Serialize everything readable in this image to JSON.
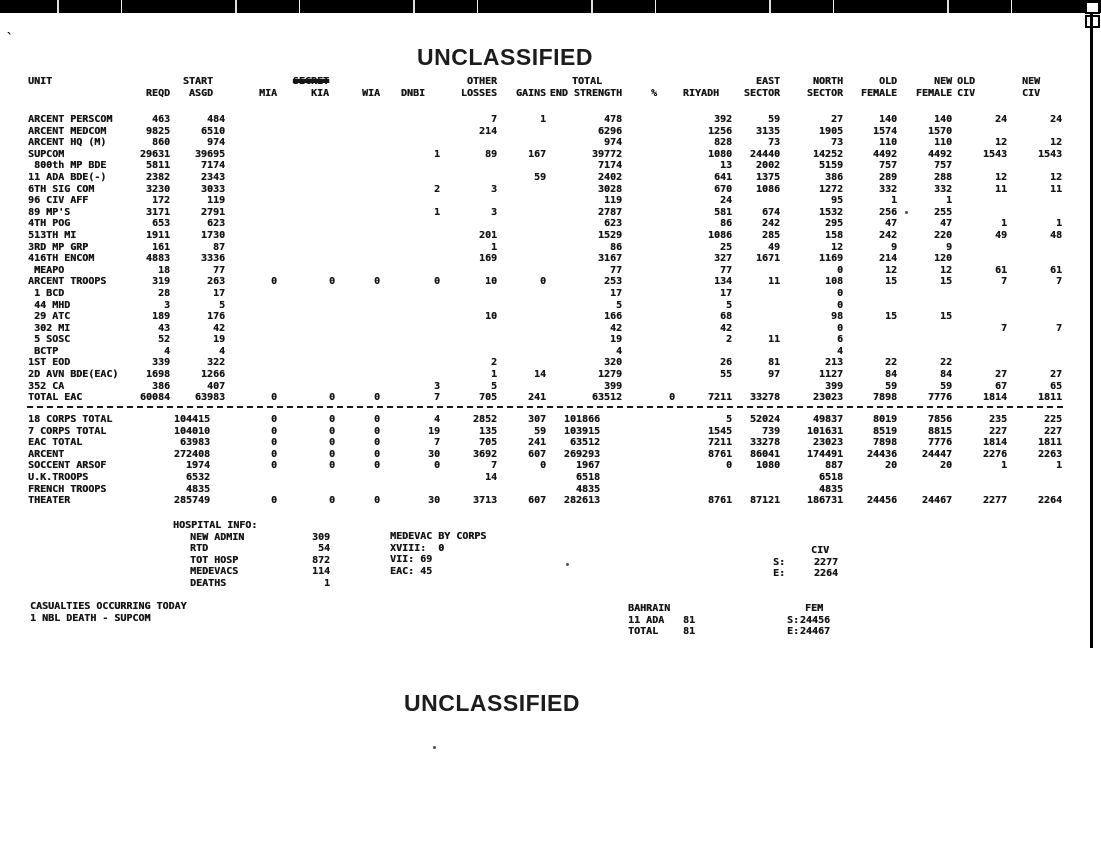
{
  "page": {
    "classification_top": "UNCLASSIFIED",
    "classification_bottom": "UNCLASSIFIED"
  },
  "colors": {
    "ink": "#161616",
    "bar": "#000000",
    "paper": "#ffffff"
  },
  "table": {
    "header_top": [
      "UNIT",
      "",
      "START",
      "",
      "SECRET",
      "",
      "",
      "OTHER",
      "",
      "TOTAL",
      "",
      "",
      "EAST",
      "NORTH",
      "OLD",
      "NEW",
      "OLD",
      "NEW"
    ],
    "header_bottom": [
      "",
      "REQD",
      "ASGD",
      "MIA",
      "KIA",
      "WIA",
      "DNBI",
      "LOSSES",
      "GAINS",
      "END STRENGTH",
      "%",
      "RIYADH",
      "SECTOR",
      "SECTOR",
      "FEMALE",
      "FEMALE",
      "CIV",
      "CIV"
    ],
    "rows": [
      [
        "ARCENT PERSCOM",
        "463",
        "484",
        "",
        "",
        "",
        "",
        "7",
        "1",
        "478",
        "",
        "392",
        "59",
        "27",
        "140",
        "140",
        "24",
        "24"
      ],
      [
        "ARCENT MEDCOM",
        "9825",
        "6510",
        "",
        "",
        "",
        "",
        "214",
        "",
        "6296",
        "",
        "1256",
        "3135",
        "1905",
        "1574",
        "1570",
        "",
        ""
      ],
      [
        "ARCENT HQ (M)",
        "860",
        "974",
        "",
        "",
        "",
        "",
        "",
        "",
        "974",
        "",
        "828",
        "73",
        "73",
        "110",
        "110",
        "12",
        "12"
      ],
      [
        "SUPCOM",
        "29631",
        "39695",
        "",
        "",
        "",
        "1",
        "89",
        "167",
        "39772",
        "",
        "1080",
        "24440",
        "14252",
        "4492",
        "4492",
        "1543",
        "1543"
      ],
      [
        " 800th MP BDE",
        "5811",
        "7174",
        "",
        "",
        "",
        "",
        "",
        "",
        "7174",
        "",
        "13",
        "2002",
        "5159",
        "757",
        "757",
        "",
        ""
      ],
      [
        "11 ADA BDE(-)",
        "2382",
        "2343",
        "",
        "",
        "",
        "",
        "",
        "59",
        "2402",
        "",
        "641",
        "1375",
        "386",
        "289",
        "288",
        "12",
        "12"
      ],
      [
        "6TH SIG COM",
        "3230",
        "3033",
        "",
        "",
        "",
        "2",
        "3",
        "",
        "3028",
        "",
        "670",
        "1086",
        "1272",
        "332",
        "332",
        "11",
        "11"
      ],
      [
        "96 CIV AFF",
        "172",
        "119",
        "",
        "",
        "",
        "",
        "",
        "",
        "119",
        "",
        "24",
        "",
        "95",
        "1",
        "1",
        "",
        ""
      ],
      [
        "89 MP'S",
        "3171",
        "2791",
        "",
        "",
        "",
        "1",
        "3",
        "",
        "2787",
        "",
        "581",
        "674",
        "1532",
        "256",
        "255",
        "",
        ""
      ],
      [
        "4TH POG",
        "653",
        "623",
        "",
        "",
        "",
        "",
        "",
        "",
        "623",
        "",
        "86",
        "242",
        "295",
        "47",
        "47",
        "1",
        "1"
      ],
      [
        "513TH MI",
        "1911",
        "1730",
        "",
        "",
        "",
        "",
        "201",
        "",
        "1529",
        "",
        "1086",
        "285",
        "158",
        "242",
        "220",
        "49",
        "48"
      ],
      [
        "3RD MP GRP",
        "161",
        "87",
        "",
        "",
        "",
        "",
        "1",
        "",
        "86",
        "",
        "25",
        "49",
        "12",
        "9",
        "9",
        "",
        ""
      ],
      [
        "416TH ENCOM",
        "4883",
        "3336",
        "",
        "",
        "",
        "",
        "169",
        "",
        "3167",
        "",
        "327",
        "1671",
        "1169",
        "214",
        "120",
        "",
        ""
      ],
      [
        " MEAPO",
        "18",
        "77",
        "",
        "",
        "",
        "",
        "",
        "",
        "77",
        "",
        "77",
        "",
        "0",
        "12",
        "12",
        "61",
        "61"
      ],
      [
        "ARCENT TROOPS",
        "319",
        "263",
        "0",
        "0",
        "0",
        "0",
        "10",
        "0",
        "253",
        "",
        "134",
        "11",
        "108",
        "15",
        "15",
        "7",
        "7"
      ],
      [
        " 1 BCD",
        "28",
        "17",
        "",
        "",
        "",
        "",
        "",
        "",
        "17",
        "",
        "17",
        "",
        "0",
        "",
        "",
        "",
        ""
      ],
      [
        " 44 MHD",
        "3",
        "5",
        "",
        "",
        "",
        "",
        "",
        "",
        "5",
        "",
        "5",
        "",
        "0",
        "",
        "",
        "",
        ""
      ],
      [
        " 29 ATC",
        "189",
        "176",
        "",
        "",
        "",
        "",
        "10",
        "",
        "166",
        "",
        "68",
        "",
        "98",
        "15",
        "15",
        "",
        ""
      ],
      [
        " 302 MI",
        "43",
        "42",
        "",
        "",
        "",
        "",
        "",
        "",
        "42",
        "",
        "42",
        "",
        "0",
        "",
        "",
        "7",
        "7"
      ],
      [
        " 5 SOSC",
        "52",
        "19",
        "",
        "",
        "",
        "",
        "",
        "",
        "19",
        "",
        "2",
        "11",
        "6",
        "",
        "",
        "",
        ""
      ],
      [
        " BCTP",
        "4",
        "4",
        "",
        "",
        "",
        "",
        "",
        "",
        "4",
        "",
        "",
        "",
        "4",
        "",
        "",
        "",
        ""
      ],
      [
        "1ST EOD",
        "339",
        "322",
        "",
        "",
        "",
        "",
        "2",
        "",
        "320",
        "",
        "26",
        "81",
        "213",
        "22",
        "22",
        "",
        ""
      ],
      [
        "2D AVN BDE(EAC)",
        "1698",
        "1266",
        "",
        "",
        "",
        "",
        "1",
        "14",
        "1279",
        "",
        "55",
        "97",
        "1127",
        "84",
        "84",
        "27",
        "27"
      ],
      [
        "352 CA",
        "386",
        "407",
        "",
        "",
        "",
        "3",
        "5",
        "",
        "399",
        "",
        "",
        "",
        "399",
        "59",
        "59",
        "67",
        "65"
      ],
      [
        "TOTAL EAC",
        "60084",
        "63983",
        "0",
        "0",
        "0",
        "7",
        "705",
        "241",
        "63512",
        "0",
        "7211",
        "33278",
        "23023",
        "7898",
        "7776",
        "1814",
        "1811"
      ]
    ],
    "summary_rows": [
      [
        "18 CORPS TOTAL",
        "",
        "104415",
        "0",
        "0",
        "0",
        "4",
        "2852",
        "307",
        "101866",
        "",
        "5",
        "52024",
        "49837",
        "8019",
        "7856",
        "235",
        "225"
      ],
      [
        "7 CORPS TOTAL",
        "",
        "104010",
        "0",
        "0",
        "0",
        "19",
        "135",
        "59",
        "103915",
        "",
        "1545",
        "739",
        "101631",
        "8519",
        "8815",
        "227",
        "227"
      ],
      [
        "EAC TOTAL",
        "",
        "63983",
        "0",
        "0",
        "0",
        "7",
        "705",
        "241",
        "63512",
        "",
        "7211",
        "33278",
        "23023",
        "7898",
        "7776",
        "1814",
        "1811"
      ],
      [
        "ARCENT",
        "",
        "272408",
        "0",
        "0",
        "0",
        "30",
        "3692",
        "607",
        "269293",
        "",
        "8761",
        "86041",
        "174491",
        "24436",
        "24447",
        "2276",
        "2263"
      ],
      [
        "SOCCENT ARSOF",
        "",
        "1974",
        "0",
        "0",
        "0",
        "0",
        "7",
        "0",
        "1967",
        "",
        "0",
        "1080",
        "887",
        "20",
        "20",
        "1",
        "1"
      ],
      [
        "U.K.TROOPS",
        "",
        "6532",
        "",
        "",
        "",
        "",
        "14",
        "",
        "6518",
        "",
        "",
        "",
        "6518",
        "",
        "",
        "",
        ""
      ],
      [
        "FRENCH TROOPS",
        "",
        "4835",
        "",
        "",
        "",
        "",
        "",
        "",
        "4835",
        "",
        "",
        "",
        "4835",
        "",
        "",
        "",
        ""
      ],
      [
        "THEATER",
        "",
        "285749",
        "0",
        "0",
        "0",
        "30",
        "3713",
        "607",
        "282613",
        "",
        "8761",
        "87121",
        "186731",
        "24456",
        "24467",
        "2277",
        "2264"
      ]
    ]
  },
  "hospital": {
    "title": "HOSPITAL INFO:",
    "items": [
      {
        "label": "NEW ADMIN",
        "value": "309"
      },
      {
        "label": "RTD",
        "value": "54"
      },
      {
        "label": "TOT HOSP",
        "value": "872"
      },
      {
        "label": "MEDEVACS",
        "value": "114"
      },
      {
        "label": "DEATHS",
        "value": "1"
      }
    ],
    "medevac_title": "MEDEVAC BY CORPS",
    "medevac_lines": [
      "XVIII:  0",
      "VII: 69",
      "EAC: 45"
    ],
    "civ": {
      "title": "CIV",
      "rows": [
        {
          "label": "S:",
          "value": "2277"
        },
        {
          "label": "E:",
          "value": "2264"
        }
      ]
    }
  },
  "casualties": {
    "line1": "CASUALTIES OCCURRING TODAY",
    "line2": "1 NBL DEATH - SUPCOM"
  },
  "bahrain": {
    "title": "BAHRAIN",
    "rows": [
      {
        "label": "11 ADA",
        "value": "81"
      },
      {
        "label": "TOTAL",
        "value": "81"
      }
    ]
  },
  "fem": {
    "title": "FEM",
    "rows": [
      {
        "label": "S:",
        "value": "24456"
      },
      {
        "label": "E:",
        "value": "24467"
      }
    ]
  }
}
